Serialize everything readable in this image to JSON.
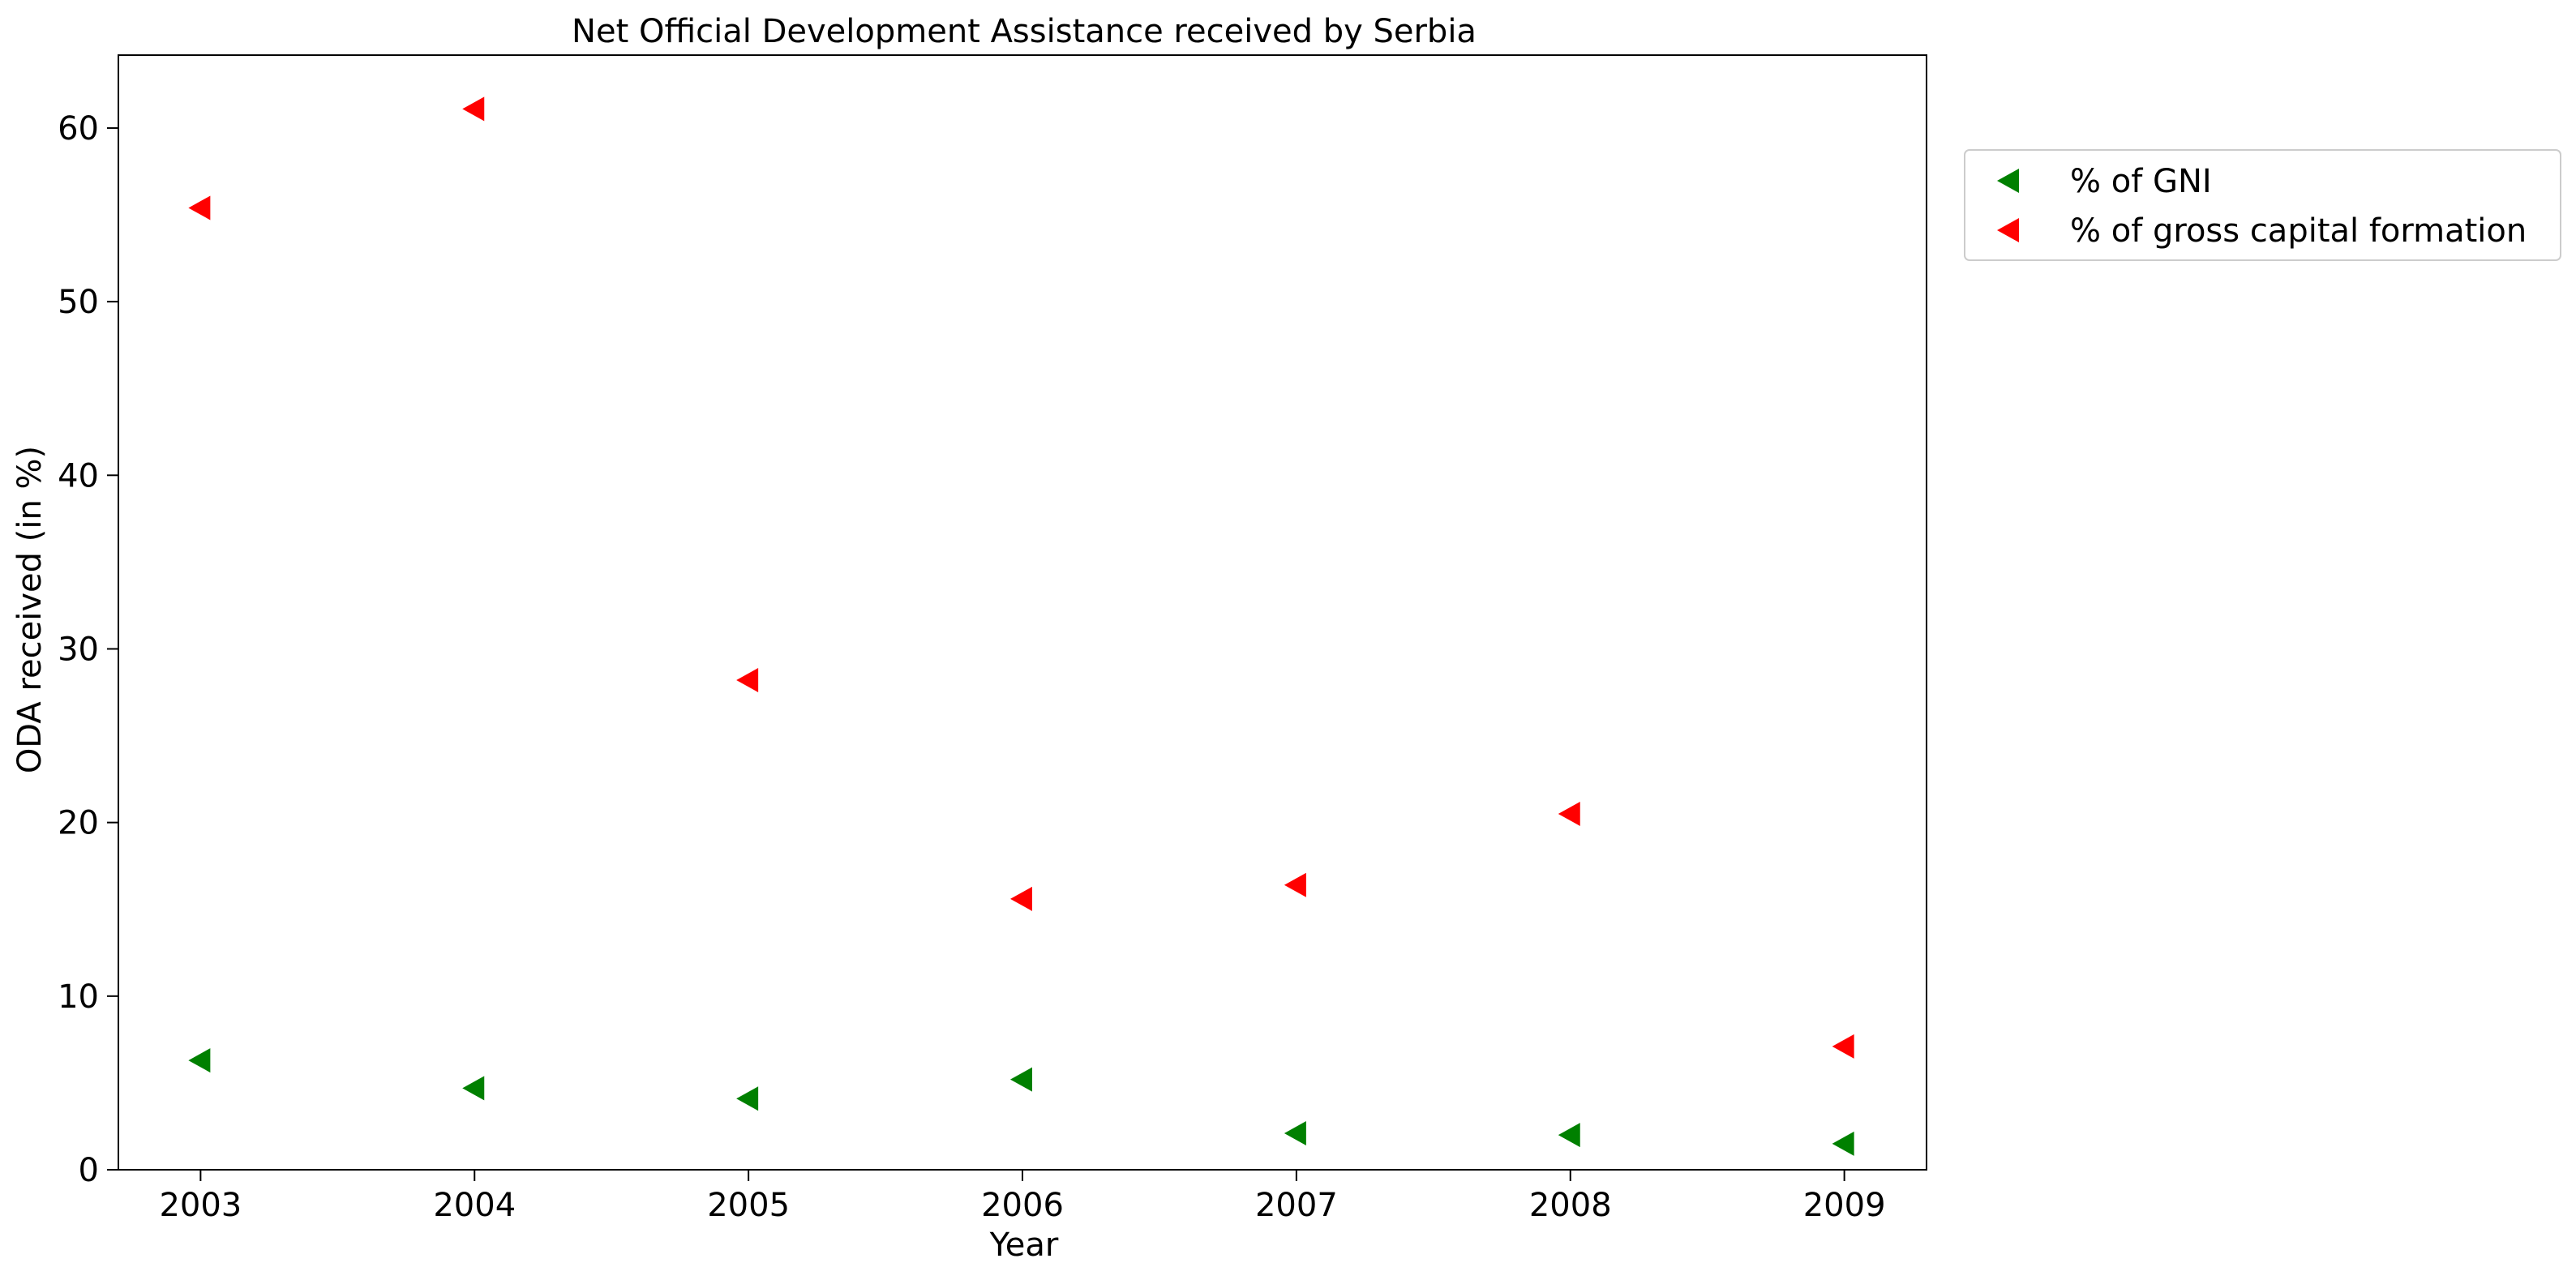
{
  "chart_data": {
    "type": "scatter",
    "title": "Net Official Development Assistance received by Serbia",
    "xlabel": "Year",
    "ylabel": "ODA received (in %)",
    "x": [
      2003,
      2004,
      2005,
      2006,
      2007,
      2008,
      2009
    ],
    "x_tick_labels": [
      "2003",
      "2004",
      "2005",
      "2006",
      "2007",
      "2008",
      "2009"
    ],
    "xlim": [
      2002.7,
      2009.3
    ],
    "y_ticks": [
      0,
      10,
      20,
      30,
      40,
      50,
      60
    ],
    "y_tick_labels": [
      "0",
      "10",
      "20",
      "30",
      "40",
      "50",
      "60"
    ],
    "ylim": [
      0,
      64.2
    ],
    "grid": false,
    "legend_position": "outside-right-top",
    "marker": "triangle-left",
    "series": [
      {
        "name": "% of GNI",
        "color": "#008000",
        "values": [
          6.3,
          4.7,
          4.1,
          5.2,
          2.1,
          2.0,
          1.5
        ]
      },
      {
        "name": "% of gross capital formation",
        "color": "#ff0000",
        "values": [
          55.4,
          61.1,
          28.2,
          15.6,
          16.4,
          20.5,
          7.1
        ]
      }
    ]
  }
}
